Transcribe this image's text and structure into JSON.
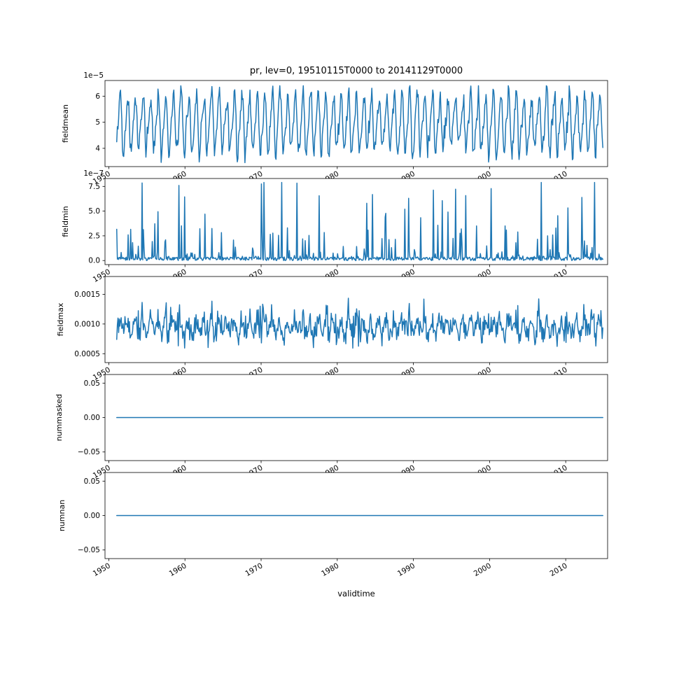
{
  "chart_data": {
    "type": "line",
    "title": "pr, lev=0, 19510115T0000 to 20141129T0000",
    "xlabel": "validtime",
    "line_color": "#1f77b4",
    "background_color": "#ffffff",
    "x_start": 1951.04,
    "x_end": 2014.91,
    "xlim": [
      1949.5,
      2015.5
    ],
    "points_per_year": 12,
    "x_tick_rotation_deg": 30,
    "x_ticks": [
      {
        "v": 1950,
        "label": "1950"
      },
      {
        "v": 1960,
        "label": "1960"
      },
      {
        "v": 1970,
        "label": "1970"
      },
      {
        "v": 1980,
        "label": "1980"
      },
      {
        "v": 1990,
        "label": "1990"
      },
      {
        "v": 2000,
        "label": "2000"
      },
      {
        "v": 2010,
        "label": "2010"
      }
    ],
    "seed": 42,
    "subplots": [
      {
        "name": "fieldmean",
        "ylabel": "fieldmean",
        "offset_label": "1e−5",
        "ylim": [
          3.3,
          6.6
        ],
        "y_ticks": [
          {
            "v": 4,
            "label": "4"
          },
          {
            "v": 5,
            "label": "5"
          },
          {
            "v": 6,
            "label": "6"
          }
        ],
        "observed_range": [
          3.5,
          6.35
        ],
        "signal": {
          "kind": "seasonal",
          "mean": 4.95,
          "amp": 1.0,
          "amp2": 0.3,
          "noise": 0.45,
          "min": 3.45,
          "max": 6.4
        }
      },
      {
        "name": "fieldmin",
        "ylabel": "fieldmin",
        "offset_label": "1e−7",
        "ylim": [
          -0.41,
          8.3
        ],
        "y_ticks": [
          {
            "v": 0,
            "label": "0.0"
          },
          {
            "v": 2.5,
            "label": "2.5"
          },
          {
            "v": 5,
            "label": "5.0"
          },
          {
            "v": 7.5,
            "label": "7.5"
          }
        ],
        "observed_range": [
          0.0,
          7.9
        ],
        "signal": {
          "kind": "spikes",
          "base": 0.35,
          "spike": 8.2,
          "power": 20,
          "min": 0,
          "max": 7.9
        }
      },
      {
        "name": "fieldmax",
        "ylabel": "fieldmax",
        "offset_label": "",
        "ylim": [
          0.00035,
          0.0018
        ],
        "y_ticks": [
          {
            "v": 0.0005,
            "label": "0.0005"
          },
          {
            "v": 0.001,
            "label": "0.0010"
          },
          {
            "v": 0.0015,
            "label": "0.0015"
          }
        ],
        "observed_range": [
          0.00045,
          0.00175
        ],
        "signal": {
          "kind": "noisy",
          "mean": 0.00092,
          "amp": 0.00012,
          "noise": 0.00028,
          "spike": 0.0004,
          "spower": 12,
          "min": 0.00044,
          "max": 0.00172
        }
      },
      {
        "name": "nummasked",
        "ylabel": "nummasked",
        "offset_label": "",
        "ylim": [
          -0.0625,
          0.0625
        ],
        "y_ticks": [
          {
            "v": -0.05,
            "label": "−0.05"
          },
          {
            "v": 0,
            "label": "0.00"
          },
          {
            "v": 0.05,
            "label": "0.05"
          }
        ],
        "observed_range": [
          0,
          0
        ],
        "signal": {
          "kind": "constant",
          "value": 0
        }
      },
      {
        "name": "numnan",
        "ylabel": "numnan",
        "offset_label": "",
        "ylim": [
          -0.0625,
          0.0625
        ],
        "y_ticks": [
          {
            "v": -0.05,
            "label": "−0.05"
          },
          {
            "v": 0,
            "label": "0.00"
          },
          {
            "v": 0.05,
            "label": "0.05"
          }
        ],
        "observed_range": [
          0,
          0
        ],
        "signal": {
          "kind": "constant",
          "value": 0
        }
      }
    ]
  }
}
